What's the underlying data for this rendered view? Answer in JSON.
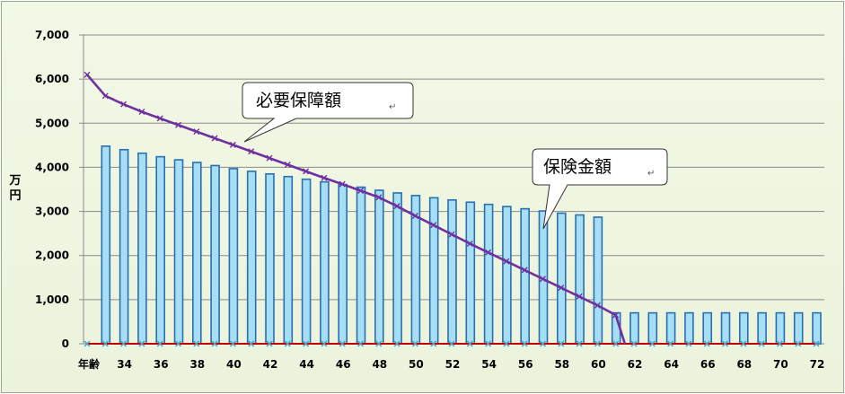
{
  "chart_data": {
    "type": "bar",
    "y_unit_label": "万円",
    "x_axis_prefix_label": "年齢",
    "ylim": [
      0,
      7000
    ],
    "y_ticks": [
      "0",
      "1,000",
      "2,000",
      "3,000",
      "4,000",
      "5,000",
      "6,000",
      "7,000"
    ],
    "y_tick_values": [
      0,
      1000,
      2000,
      3000,
      4000,
      5000,
      6000,
      7000
    ],
    "x_ticks": [
      "34",
      "36",
      "38",
      "40",
      "42",
      "44",
      "46",
      "48",
      "50",
      "52",
      "54",
      "56",
      "58",
      "60",
      "62",
      "64",
      "66",
      "68",
      "70",
      "72"
    ],
    "ages": [
      33,
      34,
      35,
      36,
      37,
      38,
      39,
      40,
      41,
      42,
      43,
      44,
      45,
      46,
      47,
      48,
      49,
      50,
      51,
      52,
      53,
      54,
      55,
      56,
      57,
      58,
      59,
      60,
      61,
      62,
      63,
      64,
      65,
      66,
      67,
      68,
      69,
      70,
      71,
      72
    ],
    "grid": true,
    "series": [
      {
        "name": "保険金額",
        "kind": "bar",
        "color": "#a6dff5",
        "edge": "#2a6fb0",
        "values": [
          4480,
          4400,
          4320,
          4240,
          4170,
          4110,
          4040,
          3970,
          3910,
          3850,
          3790,
          3730,
          3670,
          3610,
          3550,
          3480,
          3420,
          3360,
          3310,
          3260,
          3210,
          3160,
          3110,
          3060,
          3010,
          2960,
          2920,
          2870,
          700,
          700,
          700,
          700,
          700,
          700,
          700,
          700,
          700,
          700,
          700,
          700
        ]
      },
      {
        "name": "必要保障額",
        "kind": "line",
        "color": "#7030a0",
        "points": [
          [
            32,
            6100
          ],
          [
            33,
            5620
          ],
          [
            34,
            5430
          ],
          [
            35,
            5260
          ],
          [
            36,
            5110
          ],
          [
            37,
            4960
          ],
          [
            38,
            4810
          ],
          [
            39,
            4660
          ],
          [
            40,
            4510
          ],
          [
            41,
            4360
          ],
          [
            42,
            4210
          ],
          [
            43,
            4060
          ],
          [
            44,
            3910
          ],
          [
            45,
            3760
          ],
          [
            46,
            3620
          ],
          [
            47,
            3470
          ],
          [
            48,
            3320
          ],
          [
            49,
            3120
          ],
          [
            50,
            2900
          ],
          [
            51,
            2690
          ],
          [
            52,
            2480
          ],
          [
            53,
            2270
          ],
          [
            54,
            2070
          ],
          [
            55,
            1870
          ],
          [
            56,
            1670
          ],
          [
            57,
            1470
          ],
          [
            58,
            1270
          ],
          [
            59,
            1070
          ],
          [
            60,
            870
          ],
          [
            61,
            650
          ],
          [
            61.5,
            0
          ]
        ]
      },
      {
        "kind": "baseline",
        "color": "#c00000",
        "values": [
          0,
          0,
          0,
          0,
          0,
          0,
          0,
          0,
          0,
          0,
          0,
          0,
          0,
          0,
          0,
          0,
          0,
          0,
          0,
          0,
          0,
          0,
          0,
          0,
          0,
          0,
          0,
          0,
          0,
          0,
          0,
          0,
          0,
          0,
          0,
          0,
          0,
          0,
          0,
          0
        ]
      }
    ],
    "annotations": [
      {
        "text": "必要保障額",
        "return_mark": "↵"
      },
      {
        "text": "保険金額",
        "return_mark": "↵"
      }
    ]
  }
}
